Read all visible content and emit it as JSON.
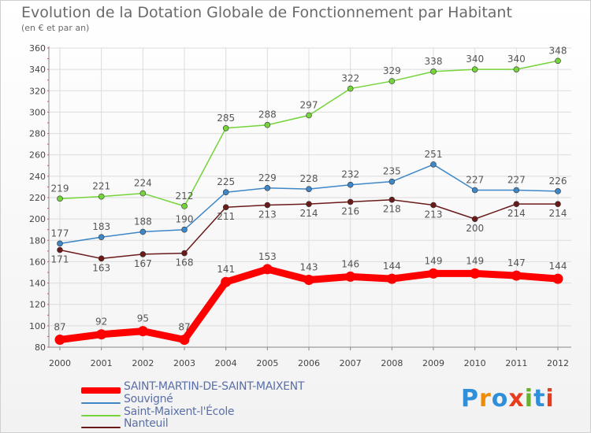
{
  "title": "Evolution de la Dotation Globale de Fonctionnement par Habitant",
  "subtitle": "(en € et par an)",
  "logo": {
    "text": "Proxiti",
    "colors": [
      "#2f8fd8",
      "#f08c00",
      "#2f8fd8",
      "#e83c1e",
      "#68b030",
      "#2f8fd8",
      "#e83c1e"
    ]
  },
  "chart_data": {
    "type": "line",
    "x": [
      "2000",
      "2001",
      "2002",
      "2003",
      "2004",
      "2005",
      "2006",
      "2007",
      "2008",
      "2009",
      "2010",
      "2011",
      "2012"
    ],
    "ylim": [
      80,
      360
    ],
    "yticks": [
      80,
      100,
      120,
      140,
      160,
      180,
      200,
      220,
      240,
      260,
      280,
      300,
      320,
      340,
      360
    ],
    "grid": true,
    "legend_position": "bottom-left",
    "series": [
      {
        "name": "SAINT-MARTIN-DE-SAINT-MAIXENT",
        "color": "#ff0000",
        "values": [
          87,
          92,
          95,
          87,
          141,
          153,
          143,
          146,
          144,
          149,
          149,
          147,
          144
        ]
      },
      {
        "name": "Souvigné",
        "color": "#3e87c8",
        "values": [
          177,
          183,
          188,
          190,
          225,
          229,
          228,
          232,
          235,
          251,
          227,
          227,
          226
        ]
      },
      {
        "name": "Saint-Maixent-l'École",
        "color": "#74d43a",
        "values": [
          219,
          221,
          224,
          212,
          285,
          288,
          297,
          322,
          329,
          338,
          340,
          340,
          348
        ]
      },
      {
        "name": "Nanteuil",
        "color": "#6b1a1a",
        "values": [
          171,
          163,
          167,
          168,
          211,
          213,
          214,
          216,
          218,
          213,
          200,
          214,
          214
        ]
      }
    ]
  }
}
